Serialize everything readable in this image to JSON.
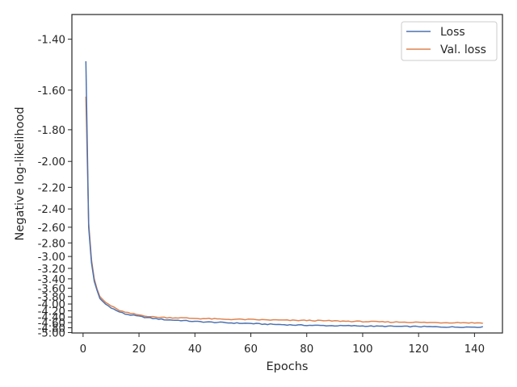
{
  "chart_data": {
    "type": "line",
    "title": "",
    "xlabel": "Epochs",
    "ylabel": "Negative log-likelihood",
    "xlim": [
      -4,
      150
    ],
    "ylim_note": "y axis uses a reciprocal-style scale; tick labels are negative NLL values",
    "x_ticks": [
      0,
      20,
      40,
      60,
      80,
      100,
      120,
      140
    ],
    "y_ticks": [
      -1.4,
      -1.6,
      -1.8,
      -2.0,
      -2.2,
      -2.4,
      -2.6,
      -2.8,
      -3.0,
      -3.2,
      -3.4,
      -3.6,
      -3.8,
      -4.0,
      -4.2,
      -4.4,
      -4.6,
      -4.8,
      -5.0
    ],
    "y_tick_labels": [
      "-1.40",
      "-1.60",
      "-1.80",
      "-2.00",
      "-2.20",
      "-2.40",
      "-2.60",
      "-2.80",
      "-3.00",
      "-3.20",
      "-3.40",
      "-3.60",
      "-3.80",
      "-4.00",
      "-4.20",
      "-4.40",
      "-4.60",
      "-4.80",
      "-5.00"
    ],
    "grid": false,
    "legend_position": "top-right",
    "series": [
      {
        "name": "Loss",
        "color": "#4c72b0",
        "x": [
          1,
          2,
          3,
          4,
          5,
          6,
          8,
          10,
          12,
          15,
          20,
          25,
          30,
          35,
          40,
          45,
          50,
          55,
          60,
          65,
          70,
          75,
          80,
          85,
          90,
          95,
          100,
          105,
          110,
          115,
          120,
          125,
          130,
          135,
          140,
          143
        ],
        "y": [
          -1.48,
          -2.6,
          -3.1,
          -3.45,
          -3.65,
          -3.85,
          -4.0,
          -4.1,
          -4.2,
          -4.3,
          -4.38,
          -4.45,
          -4.5,
          -4.52,
          -4.56,
          -4.58,
          -4.6,
          -4.62,
          -4.63,
          -4.66,
          -4.67,
          -4.69,
          -4.7,
          -4.71,
          -4.72,
          -4.72,
          -4.73,
          -4.74,
          -4.74,
          -4.75,
          -4.75,
          -4.76,
          -4.77,
          -4.77,
          -4.77,
          -4.77
        ]
      },
      {
        "name": "Val. loss",
        "color": "#dd8452",
        "x": [
          1,
          2,
          3,
          4,
          5,
          6,
          8,
          10,
          12,
          15,
          20,
          25,
          30,
          35,
          40,
          45,
          50,
          55,
          60,
          65,
          70,
          75,
          80,
          85,
          90,
          95,
          100,
          105,
          110,
          115,
          120,
          125,
          130,
          135,
          140,
          143
        ],
        "y": [
          -1.63,
          -2.55,
          -3.05,
          -3.4,
          -3.62,
          -3.8,
          -3.95,
          -4.05,
          -4.15,
          -4.25,
          -4.33,
          -4.4,
          -4.42,
          -4.43,
          -4.45,
          -4.46,
          -4.48,
          -4.48,
          -4.49,
          -4.5,
          -4.51,
          -4.52,
          -4.52,
          -4.53,
          -4.54,
          -4.55,
          -4.56,
          -4.57,
          -4.58,
          -4.58,
          -4.59,
          -4.6,
          -4.6,
          -4.6,
          -4.61,
          -4.61
        ]
      }
    ]
  }
}
